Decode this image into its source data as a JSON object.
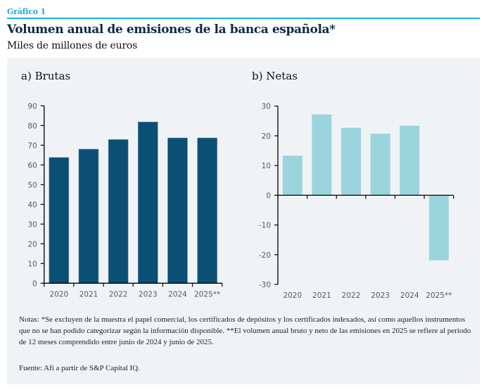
{
  "header": {
    "kicker": "Gráfico 1",
    "title": "Volumen anual de emisiones de la banca española*",
    "subtitle": "Miles de millones de euros"
  },
  "colors": {
    "accent": "#1ab0e0",
    "brutas_bar": "#0a4f74",
    "netas_bar": "#9ad4dc",
    "panel_bg": "#f0f3f5"
  },
  "chart_data": [
    {
      "type": "bar",
      "title": "a) Brutas",
      "categories": [
        "2020",
        "2021",
        "2022",
        "2023",
        "2024",
        "2025**"
      ],
      "values": [
        63.8,
        68.0,
        72.9,
        81.8,
        73.7,
        73.7
      ],
      "xlabel": "",
      "ylabel": "",
      "ylim": [
        0,
        90
      ],
      "yticks": [
        0,
        10,
        20,
        30,
        40,
        50,
        60,
        70,
        80,
        90
      ],
      "grid": false,
      "legend": "none"
    },
    {
      "type": "bar",
      "title": "b) Netas",
      "categories": [
        "2020",
        "2021",
        "2022",
        "2023",
        "2024",
        "2025**"
      ],
      "values": [
        13.3,
        27.2,
        22.7,
        20.7,
        23.4,
        -21.9
      ],
      "xlabel": "",
      "ylabel": "",
      "ylim": [
        -30,
        30
      ],
      "yticks": [
        -30,
        -20,
        -10,
        0,
        10,
        20,
        30
      ],
      "grid": false,
      "legend": "none"
    }
  ],
  "footer": {
    "notes": "Notas: *Se excluyen de la muestra el papel comercial, los certificados de depósitos y los certificados indexados, así como aquellos instrumentos que no se han podido categorizar según la información disponible. **El volumen anual bruto y neto de las emisiones en 2025 se refiere al periodo de 12 meses comprendido entre junio de 2024 y junio de 2025.",
    "source": "Fuente: Afi a partir de S&P Capital IQ."
  }
}
